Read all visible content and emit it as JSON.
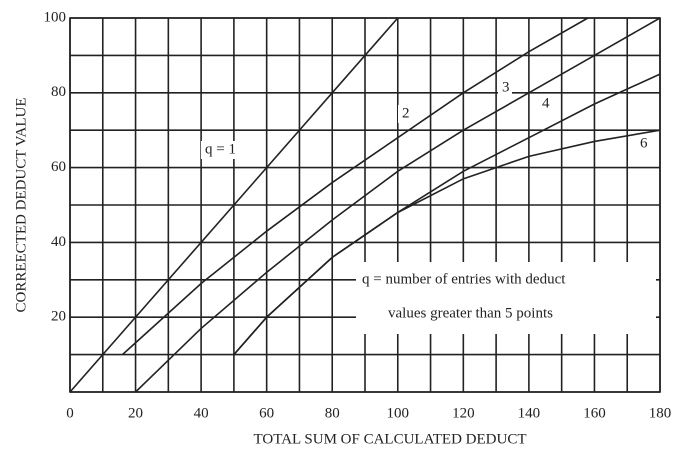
{
  "chart_data": {
    "type": "line",
    "y_label": "CORREECTED DEDUCT VALUE",
    "x_label": "TOTAL SUM OF CALCULATED DEDUCT",
    "annotation": [
      "q = number of entries with deduct",
      "values greater than 5 points"
    ],
    "xlim": [
      0,
      180
    ],
    "ylim": [
      0,
      100
    ],
    "xticks": [
      0,
      20,
      40,
      60,
      80,
      100,
      120,
      140,
      160,
      180
    ],
    "yticks": [
      20,
      40,
      60,
      80,
      100
    ],
    "xminor": [
      10,
      30,
      50,
      70,
      90,
      110,
      130,
      150,
      170
    ],
    "yminor": [
      0,
      10,
      30,
      50,
      70,
      90
    ],
    "grid": true,
    "series": [
      {
        "name": "q = 1",
        "color": "#222",
        "x": [
          0,
          100
        ],
        "values": [
          0,
          100
        ]
      },
      {
        "name": "2",
        "color": "#222",
        "x": [
          16,
          40,
          60,
          80,
          100,
          120,
          140,
          158
        ],
        "values": [
          10,
          29,
          43,
          56,
          68,
          80,
          91,
          100
        ]
      },
      {
        "name": "3",
        "color": "#222",
        "x": [
          20,
          40,
          60,
          80,
          100,
          120,
          140,
          160,
          180
        ],
        "values": [
          0,
          17,
          32,
          46,
          59,
          70,
          80,
          90,
          100
        ]
      },
      {
        "name": "4",
        "color": "#222",
        "x": [
          50,
          60,
          80,
          100,
          120,
          140,
          160,
          180
        ],
        "values": [
          10,
          20,
          36,
          48,
          59,
          68,
          77,
          85
        ]
      },
      {
        "name": "6",
        "color": "#222",
        "x": [
          50,
          60,
          80,
          100,
          120,
          140,
          160,
          180
        ],
        "values": [
          10,
          20,
          36,
          48,
          57,
          63,
          67,
          70
        ]
      }
    ]
  }
}
